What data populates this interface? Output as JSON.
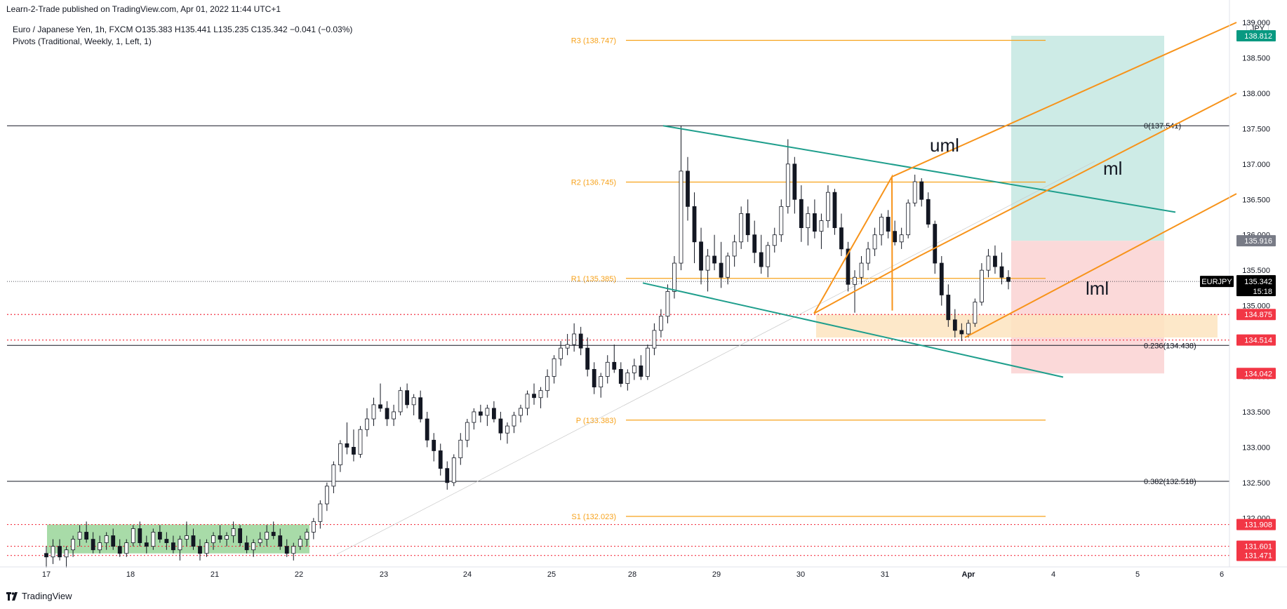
{
  "header": {
    "publisher": "Learn-2-Trade published on TradingView.com, Apr 01, 2022 11:44 UTC+1"
  },
  "legend": {
    "symbol_line": "Euro / Japanese Yen, 1h, FXCM  O135.383  H135.441  L135.235  C135.342  −0.041 (−0.03%)",
    "indicator_line": "Pivots (Traditional, Weekly, 1, Left, 1)"
  },
  "currency_badge": "JPY",
  "footer": {
    "brand": "TradingView"
  },
  "colors": {
    "up": "#ffffff",
    "down": "#131722",
    "pivot": "#f7a21b",
    "fork": "#f7931a",
    "channel": "#1e9e8c",
    "target_zone": "#cdebe6",
    "stop_zone": "#fbd9d9",
    "support_zone": "#fde4bf",
    "range_box": "#a8dba8",
    "price_tag": "#131722",
    "red_level": "#f23645",
    "green_tag": "#089981",
    "grey_tag": "#787b86"
  },
  "chart_data": {
    "type": "candlestick",
    "symbol": "EURJPY",
    "timeframe": "1h",
    "ylim": [
      131.4,
      139.4
    ],
    "x_ticks": [
      "17",
      "18",
      "21",
      "22",
      "23",
      "24",
      "25",
      "28",
      "29",
      "30",
      "31",
      "Apr",
      "4",
      "5",
      "6"
    ],
    "y_ticks": [
      "132.000",
      "132.500",
      "133.000",
      "133.500",
      "134.000",
      "134.500",
      "135.000",
      "135.500",
      "136.000",
      "136.500",
      "137.000",
      "137.500",
      "138.000",
      "138.500",
      "139.000"
    ],
    "last_price": {
      "label": "EURJPY",
      "value": "135.342",
      "countdown": "15:18"
    },
    "price_tags": [
      {
        "value": "138.812",
        "kind": "green"
      },
      {
        "value": "135.916",
        "kind": "grey"
      },
      {
        "value": "134.875",
        "kind": "red"
      },
      {
        "value": "134.514",
        "kind": "red"
      },
      {
        "value": "134.042",
        "kind": "red"
      },
      {
        "value": "131.908",
        "kind": "red"
      },
      {
        "value": "131.601",
        "kind": "red"
      },
      {
        "value": "131.471",
        "kind": "red"
      }
    ],
    "pivots": [
      {
        "label": "R3 (138.747)",
        "value": 138.747
      },
      {
        "label": "R2 (136.745)",
        "value": 136.745
      },
      {
        "label": "R1 (135.385)",
        "value": 135.385
      },
      {
        "label": "P (133.383)",
        "value": 133.383
      },
      {
        "label": "S1 (132.023)",
        "value": 132.023
      }
    ],
    "fib_levels": [
      {
        "label": "0(137.541)",
        "value": 137.541
      },
      {
        "label": "0.236(134.438)",
        "value": 134.438
      },
      {
        "label": "0.382(132.518)",
        "value": 132.518
      }
    ],
    "annotations": {
      "uml": "uml",
      "ml": "ml",
      "lml": "lml"
    },
    "dotted_levels": [
      134.875,
      134.514,
      131.908,
      131.601,
      131.471
    ],
    "candles": [
      [
        131.5,
        131.6,
        131.3,
        131.45
      ],
      [
        131.45,
        131.7,
        131.35,
        131.6
      ],
      [
        131.6,
        131.7,
        131.4,
        131.45
      ],
      [
        131.45,
        131.6,
        131.3,
        131.55
      ],
      [
        131.55,
        131.75,
        131.45,
        131.7
      ],
      [
        131.7,
        131.9,
        131.6,
        131.8
      ],
      [
        131.8,
        131.95,
        131.65,
        131.7
      ],
      [
        131.7,
        131.8,
        131.5,
        131.55
      ],
      [
        131.55,
        131.75,
        131.5,
        131.65
      ],
      [
        131.65,
        131.8,
        131.55,
        131.75
      ],
      [
        131.75,
        131.85,
        131.55,
        131.6
      ],
      [
        131.6,
        131.7,
        131.45,
        131.5
      ],
      [
        131.5,
        131.7,
        131.45,
        131.65
      ],
      [
        131.65,
        131.9,
        131.6,
        131.85
      ],
      [
        131.85,
        131.95,
        131.6,
        131.65
      ],
      [
        131.65,
        131.75,
        131.5,
        131.6
      ],
      [
        131.6,
        131.85,
        131.55,
        131.8
      ],
      [
        131.8,
        131.9,
        131.65,
        131.7
      ],
      [
        131.7,
        131.8,
        131.55,
        131.65
      ],
      [
        131.65,
        131.75,
        131.5,
        131.55
      ],
      [
        131.55,
        131.75,
        131.4,
        131.7
      ],
      [
        131.7,
        131.95,
        131.6,
        131.75
      ],
      [
        131.75,
        131.85,
        131.55,
        131.6
      ],
      [
        131.6,
        131.7,
        131.4,
        131.5
      ],
      [
        131.5,
        131.7,
        131.45,
        131.65
      ],
      [
        131.65,
        131.8,
        131.55,
        131.75
      ],
      [
        131.75,
        131.9,
        131.65,
        131.7
      ],
      [
        131.7,
        131.8,
        131.6,
        131.75
      ],
      [
        131.75,
        131.95,
        131.65,
        131.85
      ],
      [
        131.85,
        131.9,
        131.6,
        131.65
      ],
      [
        131.65,
        131.75,
        131.5,
        131.55
      ],
      [
        131.55,
        131.7,
        131.45,
        131.65
      ],
      [
        131.65,
        131.8,
        131.6,
        131.7
      ],
      [
        131.7,
        131.9,
        131.6,
        131.8
      ],
      [
        131.8,
        131.95,
        131.7,
        131.75
      ],
      [
        131.75,
        131.85,
        131.55,
        131.6
      ],
      [
        131.6,
        131.7,
        131.45,
        131.5
      ],
      [
        131.5,
        131.65,
        131.4,
        131.6
      ],
      [
        131.6,
        131.75,
        131.55,
        131.7
      ],
      [
        131.7,
        131.85,
        131.6,
        131.8
      ],
      [
        131.8,
        132.0,
        131.7,
        131.95
      ],
      [
        131.95,
        132.25,
        131.85,
        132.2
      ],
      [
        132.2,
        132.5,
        132.1,
        132.45
      ],
      [
        132.45,
        132.8,
        132.35,
        132.75
      ],
      [
        132.75,
        133.1,
        132.65,
        133.05
      ],
      [
        133.05,
        133.35,
        132.9,
        133.0
      ],
      [
        133.0,
        133.25,
        132.8,
        132.9
      ],
      [
        132.9,
        133.3,
        132.85,
        133.25
      ],
      [
        133.25,
        133.55,
        133.15,
        133.4
      ],
      [
        133.4,
        133.7,
        133.3,
        133.6
      ],
      [
        133.6,
        133.9,
        133.5,
        133.55
      ],
      [
        133.55,
        133.65,
        133.3,
        133.4
      ],
      [
        133.4,
        133.6,
        133.3,
        133.5
      ],
      [
        133.5,
        133.85,
        133.45,
        133.8
      ],
      [
        133.8,
        133.9,
        133.55,
        133.6
      ],
      [
        133.6,
        133.75,
        133.45,
        133.7
      ],
      [
        133.7,
        133.8,
        133.35,
        133.4
      ],
      [
        133.4,
        133.5,
        133.0,
        133.1
      ],
      [
        133.1,
        133.2,
        132.8,
        132.95
      ],
      [
        132.95,
        133.05,
        132.6,
        132.7
      ],
      [
        132.7,
        132.8,
        132.4,
        132.5
      ],
      [
        132.5,
        132.9,
        132.45,
        132.85
      ],
      [
        132.85,
        133.2,
        132.75,
        133.1
      ],
      [
        133.1,
        133.4,
        133.0,
        133.35
      ],
      [
        133.35,
        133.55,
        133.25,
        133.5
      ],
      [
        133.5,
        133.6,
        133.35,
        133.45
      ],
      [
        133.45,
        133.6,
        133.3,
        133.55
      ],
      [
        133.55,
        133.65,
        133.35,
        133.4
      ],
      [
        133.4,
        133.5,
        133.1,
        133.2
      ],
      [
        133.2,
        133.35,
        133.05,
        133.3
      ],
      [
        133.3,
        133.5,
        133.2,
        133.45
      ],
      [
        133.45,
        133.6,
        133.35,
        133.55
      ],
      [
        133.55,
        133.8,
        133.45,
        133.75
      ],
      [
        133.75,
        133.9,
        133.6,
        133.7
      ],
      [
        133.7,
        133.85,
        133.55,
        133.8
      ],
      [
        133.8,
        134.1,
        133.7,
        134.0
      ],
      [
        134.0,
        134.3,
        133.9,
        134.25
      ],
      [
        134.25,
        134.5,
        134.15,
        134.4
      ],
      [
        134.4,
        134.6,
        134.3,
        134.45
      ],
      [
        134.45,
        134.75,
        134.35,
        134.6
      ],
      [
        134.6,
        134.7,
        134.3,
        134.4
      ],
      [
        134.4,
        134.55,
        134.0,
        134.1
      ],
      [
        134.1,
        134.2,
        133.75,
        133.85
      ],
      [
        133.85,
        134.05,
        133.7,
        134.0
      ],
      [
        134.0,
        134.3,
        133.9,
        134.2
      ],
      [
        134.2,
        134.45,
        134.05,
        134.1
      ],
      [
        134.1,
        134.2,
        133.85,
        133.9
      ],
      [
        133.9,
        134.1,
        133.8,
        134.05
      ],
      [
        134.05,
        134.25,
        133.95,
        134.15
      ],
      [
        134.15,
        134.3,
        133.95,
        134.0
      ],
      [
        134.0,
        134.45,
        133.95,
        134.4
      ],
      [
        134.4,
        134.75,
        134.3,
        134.65
      ],
      [
        134.65,
        134.95,
        134.55,
        134.85
      ],
      [
        134.85,
        135.3,
        134.75,
        135.2
      ],
      [
        135.2,
        135.7,
        135.1,
        135.6
      ],
      [
        135.6,
        137.54,
        135.5,
        136.9
      ],
      [
        136.9,
        137.1,
        136.2,
        136.4
      ],
      [
        136.4,
        136.6,
        135.6,
        135.9
      ],
      [
        135.9,
        136.1,
        135.3,
        135.5
      ],
      [
        135.5,
        135.8,
        135.2,
        135.7
      ],
      [
        135.7,
        136.0,
        135.5,
        135.6
      ],
      [
        135.6,
        135.9,
        135.25,
        135.4
      ],
      [
        135.4,
        135.75,
        135.3,
        135.7
      ],
      [
        135.7,
        136.0,
        135.55,
        135.9
      ],
      [
        135.9,
        136.4,
        135.8,
        136.3
      ],
      [
        136.3,
        136.5,
        135.9,
        136.0
      ],
      [
        136.0,
        136.2,
        135.6,
        135.75
      ],
      [
        135.75,
        136.0,
        135.45,
        135.55
      ],
      [
        135.55,
        135.9,
        135.4,
        135.85
      ],
      [
        135.85,
        136.1,
        135.75,
        136.0
      ],
      [
        136.0,
        136.5,
        135.9,
        136.4
      ],
      [
        136.4,
        137.35,
        136.3,
        137.0
      ],
      [
        137.0,
        137.1,
        136.3,
        136.5
      ],
      [
        136.5,
        136.7,
        135.9,
        136.1
      ],
      [
        136.1,
        136.4,
        135.85,
        136.3
      ],
      [
        136.3,
        136.5,
        135.95,
        136.05
      ],
      [
        136.05,
        136.3,
        135.8,
        136.2
      ],
      [
        136.2,
        136.7,
        136.1,
        136.6
      ],
      [
        136.6,
        136.65,
        136.0,
        136.1
      ],
      [
        136.1,
        136.3,
        135.7,
        135.8
      ],
      [
        135.8,
        135.9,
        135.2,
        135.3
      ],
      [
        135.3,
        135.5,
        134.9,
        135.4
      ],
      [
        135.4,
        135.7,
        135.3,
        135.6
      ],
      [
        135.6,
        135.9,
        135.5,
        135.8
      ],
      [
        135.8,
        136.1,
        135.7,
        136.0
      ],
      [
        136.0,
        136.3,
        135.85,
        136.25
      ],
      [
        136.25,
        136.35,
        135.95,
        136.05
      ],
      [
        136.05,
        136.2,
        135.85,
        135.9
      ],
      [
        135.9,
        136.1,
        135.8,
        136.0
      ],
      [
        136.0,
        136.5,
        135.95,
        136.45
      ],
      [
        136.45,
        136.85,
        136.4,
        136.75
      ],
      [
        136.75,
        136.8,
        136.4,
        136.5
      ],
      [
        136.5,
        136.6,
        136.1,
        136.15
      ],
      [
        136.15,
        136.2,
        135.45,
        135.6
      ],
      [
        135.6,
        135.7,
        135.0,
        135.15
      ],
      [
        135.15,
        135.3,
        134.7,
        134.8
      ],
      [
        134.8,
        134.95,
        134.55,
        134.65
      ],
      [
        134.65,
        134.75,
        134.5,
        134.6
      ],
      [
        134.6,
        134.8,
        134.55,
        134.75
      ],
      [
        134.75,
        135.1,
        134.7,
        135.05
      ],
      [
        135.05,
        135.6,
        135.0,
        135.5
      ],
      [
        135.5,
        135.8,
        135.4,
        135.7
      ],
      [
        135.7,
        135.85,
        135.45,
        135.55
      ],
      [
        135.55,
        135.75,
        135.3,
        135.4
      ],
      [
        135.4,
        135.5,
        135.23,
        135.34
      ]
    ]
  }
}
